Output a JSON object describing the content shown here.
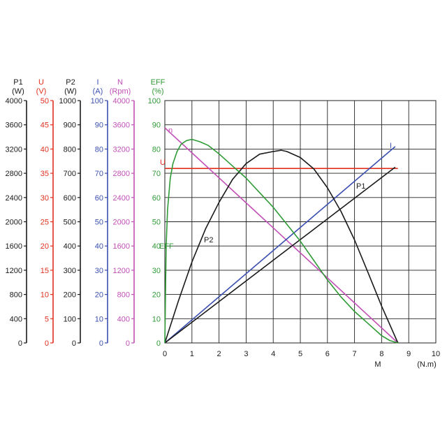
{
  "chart_data": {
    "type": "line",
    "x_axis": {
      "label": "M",
      "unit": "(N.m)",
      "range": [
        0,
        10
      ],
      "ticks": [
        0,
        1,
        2,
        3,
        4,
        5,
        6,
        7,
        8,
        9,
        10
      ]
    },
    "grid": true,
    "axes": [
      {
        "id": "P1",
        "title": "P1",
        "unit": "(W)",
        "color": "#1a1a1a",
        "range": [
          0,
          4000
        ],
        "ticks": [
          0,
          400,
          800,
          1200,
          1600,
          2000,
          2400,
          2800,
          3200,
          3600,
          4000
        ]
      },
      {
        "id": "U",
        "title": "U",
        "unit": "(V)",
        "color": "#e0301e",
        "range": [
          0,
          50
        ],
        "ticks": [
          0,
          5,
          10,
          15,
          20,
          25,
          30,
          35,
          40,
          45,
          50
        ]
      },
      {
        "id": "P2",
        "title": "P2",
        "unit": "(W)",
        "color": "#1a1a1a",
        "range": [
          0,
          1000
        ],
        "ticks": [
          0,
          100,
          200,
          300,
          400,
          500,
          600,
          700,
          800,
          900,
          1000
        ]
      },
      {
        "id": "I",
        "title": "I",
        "unit": "(A)",
        "color": "#3a4fb0",
        "range": [
          0,
          100
        ],
        "ticks": [
          0,
          10,
          20,
          30,
          40,
          50,
          60,
          70,
          80,
          90,
          100
        ]
      },
      {
        "id": "N",
        "title": "N",
        "unit": "(Rpm)",
        "color": "#c24fb6",
        "range": [
          0,
          4000
        ],
        "ticks": [
          0,
          400,
          800,
          1200,
          1600,
          2000,
          2400,
          2800,
          3200,
          3600,
          4000
        ]
      },
      {
        "id": "EFF",
        "title": "EFF",
        "unit": "(%)",
        "color": "#2f9a36",
        "range": [
          0,
          100
        ],
        "ticks": [
          0,
          10,
          20,
          30,
          40,
          50,
          60,
          70,
          80,
          90,
          100
        ]
      }
    ],
    "series": [
      {
        "name": "U",
        "axis": "U",
        "color": "#e0301e",
        "x": [
          0,
          8.6
        ],
        "y": [
          36,
          36
        ]
      },
      {
        "name": "n",
        "axis": "N",
        "color": "#c24fb6",
        "x": [
          0,
          8.6
        ],
        "y": [
          3550,
          0
        ]
      },
      {
        "name": "I",
        "axis": "I",
        "color": "#3a4fb0",
        "x": [
          0,
          8.5
        ],
        "y": [
          0,
          81
        ]
      },
      {
        "name": "P1",
        "axis": "P1",
        "color": "#1a1a1a",
        "x": [
          0,
          8.5
        ],
        "y": [
          0,
          2900
        ]
      },
      {
        "name": "P2",
        "axis": "P2",
        "color": "#1a1a1a",
        "x": [
          0,
          0.5,
          1,
          1.5,
          2,
          2.5,
          3,
          3.5,
          4,
          4.3,
          4.5,
          5,
          5.5,
          6,
          6.5,
          7,
          7.5,
          8,
          8.6
        ],
        "y": [
          0,
          173,
          334,
          470,
          580,
          675,
          740,
          779,
          790,
          795,
          790,
          765,
          718,
          640,
          543,
          425,
          290,
          152,
          0
        ]
      },
      {
        "name": "EFF",
        "axis": "EFF",
        "color": "#2f9a36",
        "x": [
          0,
          0.05,
          0.1,
          0.2,
          0.3,
          0.45,
          0.6,
          0.8,
          1,
          1.3,
          1.6,
          2,
          2.5,
          3,
          3.5,
          4,
          4.5,
          5,
          5.5,
          6,
          6.5,
          7,
          7.5,
          8,
          8.3,
          8.6
        ],
        "y": [
          0,
          40,
          55,
          68,
          74,
          79,
          82,
          83.5,
          84,
          83,
          81.5,
          78,
          73,
          68,
          62,
          56,
          49,
          42,
          34,
          26,
          19,
          13,
          8,
          3,
          1,
          0
        ]
      }
    ]
  }
}
